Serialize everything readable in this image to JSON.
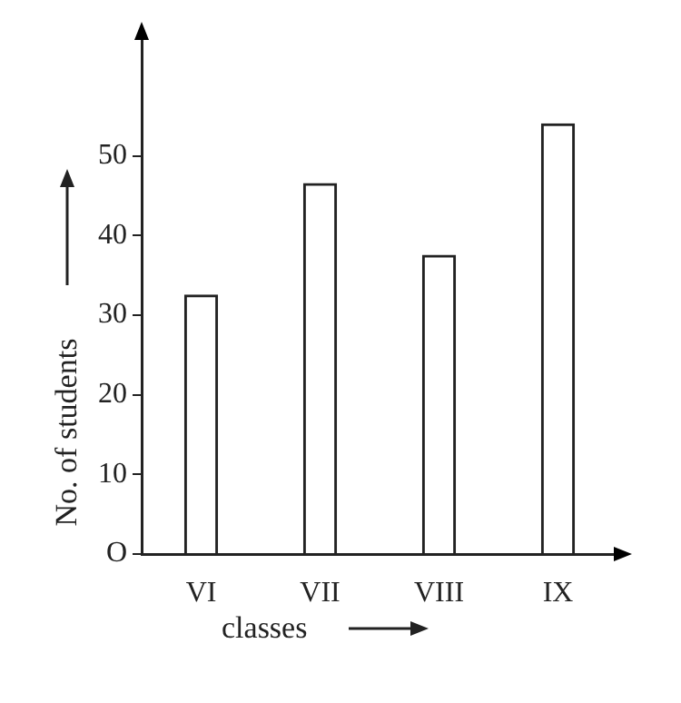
{
  "chart_data": {
    "type": "bar",
    "xlabel": "classes",
    "ylabel": "No. of students",
    "categories": [
      "VI",
      "VII",
      "VIII",
      "IX"
    ],
    "values": [
      32.5,
      46.5,
      37.5,
      54
    ],
    "color": "#ffffff",
    "ylim": [
      0,
      65
    ],
    "yticks": [
      {
        "value": 0,
        "label": "O"
      },
      10,
      20,
      30,
      40,
      50
    ],
    "grid": false,
    "legend": false
  }
}
